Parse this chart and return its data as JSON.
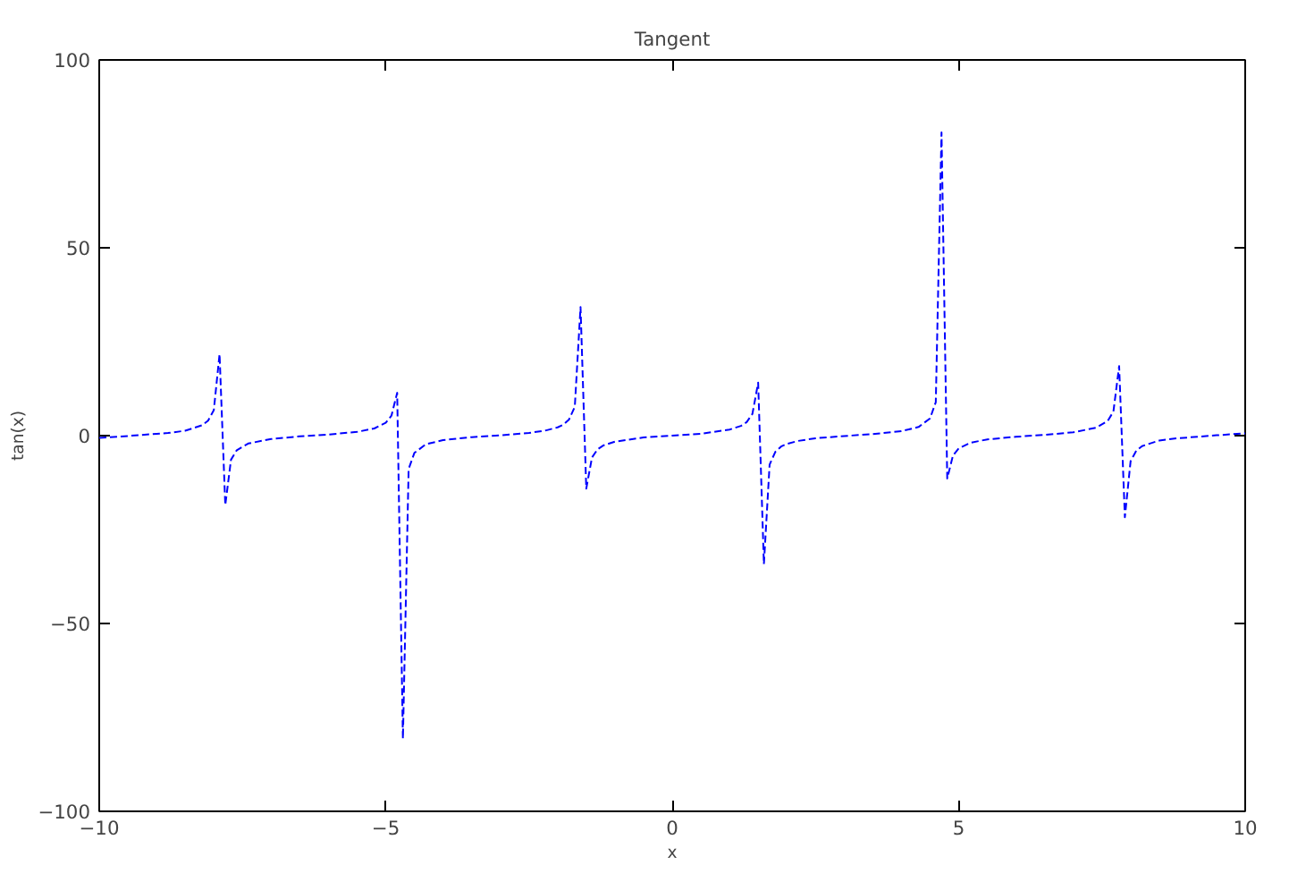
{
  "chart_data": {
    "type": "line",
    "title": "Tangent",
    "xlabel": "x",
    "ylabel": "tan(x)",
    "xlim": [
      -10,
      10
    ],
    "ylim": [
      -100,
      100
    ],
    "xticks": [
      -10,
      -5,
      0,
      5,
      10
    ],
    "yticks": [
      -100,
      -50,
      0,
      50,
      100
    ],
    "grid": false,
    "marker": "none",
    "line_style": "dashed",
    "series": [
      {
        "color": "#0000ff",
        "x": [
          -10,
          -9.5,
          -9,
          -8.8,
          -8.5,
          -8.2,
          -8.1,
          -8,
          -7.9,
          -7.8,
          -7.7,
          -7.6,
          -7.4,
          -7,
          -6.5,
          -6,
          -5.5,
          -5.2,
          -5,
          -4.9,
          -4.8,
          -4.7,
          -4.6,
          -4.5,
          -4.3,
          -4,
          -3.5,
          -3,
          -2.5,
          -2.2,
          -2,
          -1.9,
          -1.8,
          -1.7,
          -1.6,
          -1.5,
          -1.4,
          -1.3,
          -1.2,
          -1,
          -0.5,
          0,
          0.5,
          1,
          1.2,
          1.3,
          1.4,
          1.5,
          1.6,
          1.7,
          1.8,
          1.9,
          2,
          2.2,
          2.5,
          3,
          3.5,
          4,
          4.3,
          4.5,
          4.6,
          4.7,
          4.8,
          4.9,
          5,
          5.2,
          5.5,
          6,
          6.5,
          7,
          7.4,
          7.6,
          7.7,
          7.8,
          7.9,
          8,
          8.1,
          8.2,
          8.5,
          8.8,
          9,
          9.5,
          10
        ],
        "values": [
          -0.6,
          -0.1,
          0.5,
          0.7,
          1.3,
          2.8,
          4.0,
          6.8,
          21.7,
          -18.5,
          -6.4,
          -3.9,
          -2.1,
          -0.9,
          -0.2,
          0.3,
          1.0,
          1.9,
          3.4,
          5.3,
          11.4,
          -80.7,
          -8.9,
          -4.6,
          -2.3,
          -1.2,
          -0.4,
          0.1,
          0.7,
          1.4,
          2.2,
          2.9,
          4.3,
          7.7,
          34.2,
          -14.1,
          -5.8,
          -3.6,
          -2.6,
          -1.6,
          -0.5,
          0,
          0.5,
          1.6,
          2.6,
          3.6,
          5.8,
          14.1,
          -34.2,
          -7.7,
          -4.3,
          -2.9,
          -2.2,
          -1.4,
          -0.7,
          -0.1,
          0.4,
          1.2,
          2.3,
          4.6,
          8.9,
          80.7,
          -11.4,
          -5.3,
          -3.4,
          -1.9,
          -1.0,
          -0.3,
          0.2,
          0.9,
          2.1,
          3.9,
          6.4,
          18.5,
          -21.7,
          -6.8,
          -4.0,
          -2.8,
          -1.3,
          -0.7,
          -0.5,
          0.1,
          0.6
        ]
      }
    ]
  }
}
